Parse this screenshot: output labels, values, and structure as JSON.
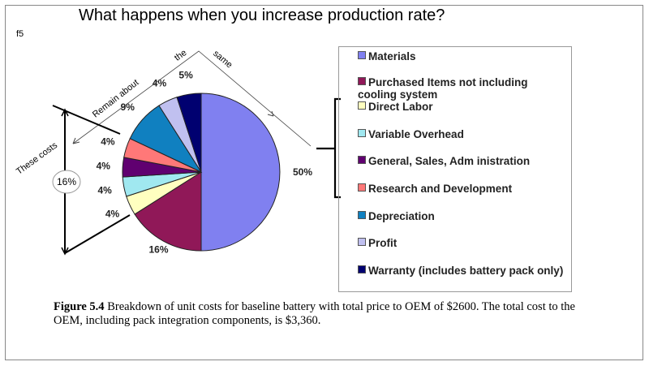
{
  "title": "What happens when you increase production rate?",
  "corner_label": "f5",
  "annotations": {
    "these_costs": "These costs",
    "remain_about": "Remain about",
    "the": "the",
    "same": "same",
    "circled": "16%"
  },
  "chart_data": {
    "type": "pie",
    "start": "12 o'clock, clockwise",
    "categories": [
      "Materials",
      "Purchased Items not including cooling system",
      "Direct Labor",
      "Variable Overhead",
      "General, Sales, Adm inistration",
      "Research and Development",
      "Depreciation",
      "Profit",
      "Warranty (includes battery pack only)"
    ],
    "values": [
      50,
      16,
      4,
      4,
      4,
      4,
      9,
      4,
      5
    ],
    "labels": [
      "50%",
      "16%",
      "4%",
      "4%",
      "4%",
      "4%",
      "9%",
      "4%",
      "5%"
    ],
    "colors": [
      "#8080f0",
      "#901858",
      "#ffffc0",
      "#a0e8f0",
      "#600070",
      "#ff7878",
      "#1080c0",
      "#c0c0f0",
      "#000070"
    ],
    "legend_placement": "right"
  },
  "caption": {
    "bold": "Figure 5.4",
    "text": " Breakdown of unit costs for baseline battery with total price to OEM of $2600. The total cost to the OEM, including pack integration components, is $3,360."
  }
}
